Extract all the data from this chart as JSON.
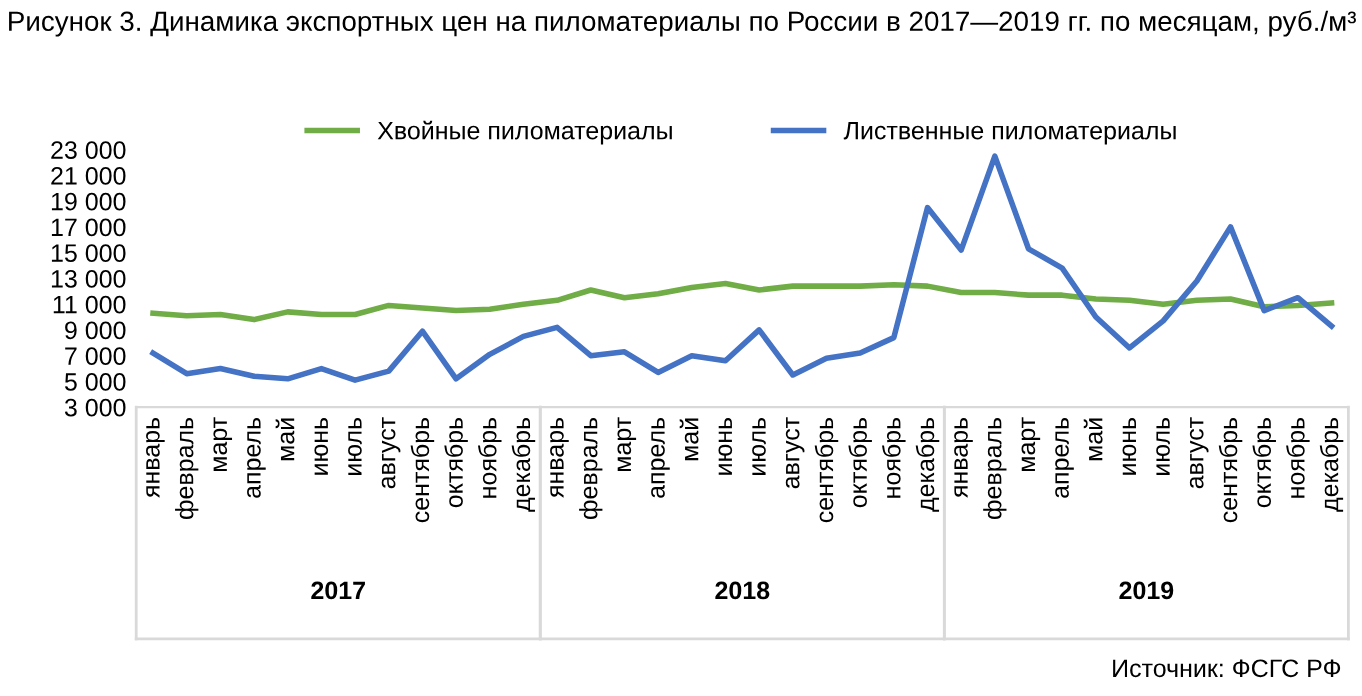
{
  "chart_data": {
    "type": "line",
    "title": "Рисунок 3. Динамика экспортных цен на пиломатериалы по России в 2017—2019 гг. по месяцам, руб./м³",
    "categories": [
      "январь",
      "февраль",
      "март",
      "апрель",
      "май",
      "июнь",
      "июль",
      "август",
      "сентябрь",
      "октябрь",
      "ноябрь",
      "декабрь",
      "январь",
      "февраль",
      "март",
      "апрель",
      "май",
      "июнь",
      "июль",
      "август",
      "сентябрь",
      "октябрь",
      "ноябрь",
      "декабрь",
      "январь",
      "февраль",
      "март",
      "апрель",
      "май",
      "июнь",
      "июль",
      "август",
      "сентябрь",
      "октябрь",
      "ноябрь",
      "декабрь"
    ],
    "series": [
      {
        "name": "Хвойные пиломатериалы",
        "color": "#70ad47",
        "values": [
          10300,
          10100,
          10200,
          9800,
          10400,
          10200,
          10200,
          10900,
          10700,
          10500,
          10600,
          11000,
          11300,
          12100,
          11500,
          11800,
          12300,
          12600,
          12100,
          12400,
          12400,
          12400,
          12500,
          12400,
          11900,
          11900,
          11700,
          11700,
          11400,
          11300,
          11000,
          11300,
          11400,
          10800,
          10900,
          11100
        ]
      },
      {
        "name": "Лиственные пиломатериалы",
        "color": "#4472c4",
        "values": [
          7200,
          5600,
          6000,
          5400,
          5200,
          6000,
          5100,
          5800,
          8900,
          5200,
          7100,
          8500,
          9200,
          7000,
          7300,
          5700,
          7000,
          6600,
          9000,
          5500,
          6800,
          7200,
          8400,
          18500,
          15200,
          22500,
          15300,
          13800,
          10000,
          7600,
          9700,
          12800,
          17000,
          10500,
          11500,
          9300
        ]
      }
    ],
    "ylim": [
      3000,
      23000
    ],
    "yticks": [
      {
        "value": 3000,
        "label": "3 000"
      },
      {
        "value": 5000,
        "label": "5 000"
      },
      {
        "value": 7000,
        "label": "7 000"
      },
      {
        "value": 9000,
        "label": "9 000"
      },
      {
        "value": 11000,
        "label": "11 000"
      },
      {
        "value": 13000,
        "label": "13 000"
      },
      {
        "value": 15000,
        "label": "15 000"
      },
      {
        "value": 17000,
        "label": "17 000"
      },
      {
        "value": 19000,
        "label": "19 000"
      },
      {
        "value": 21000,
        "label": "21 000"
      },
      {
        "value": 23000,
        "label": "23 000"
      }
    ],
    "grid": false,
    "legend": "top",
    "annotations": [
      "2017",
      "2018",
      "2019",
      "Источник: ФСГС РФ"
    ]
  }
}
